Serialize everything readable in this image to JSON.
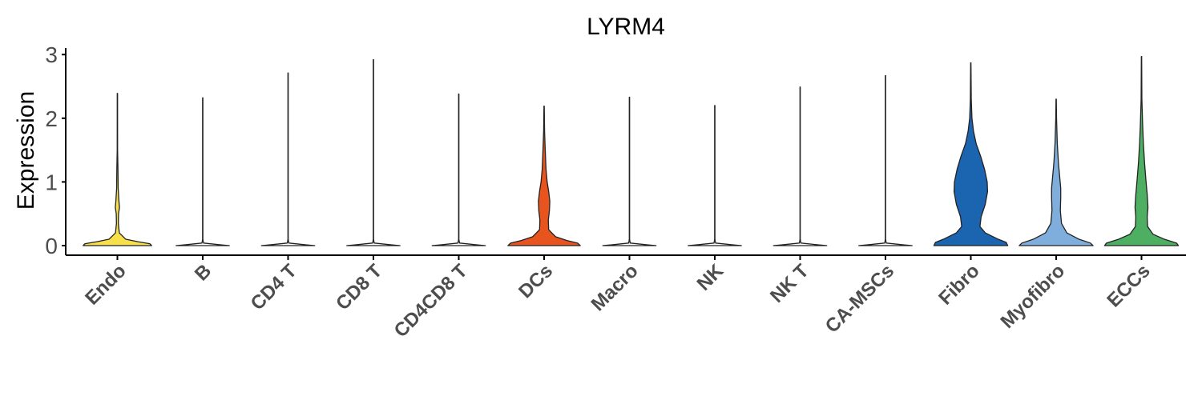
{
  "chart_data": {
    "type": "violin",
    "title": "LYRM4",
    "xlabel": "",
    "ylabel": "Expression",
    "ylim": [
      0,
      3.1
    ],
    "yticks": [
      "0",
      "1",
      "2",
      "3"
    ],
    "grid": false,
    "legend": "none",
    "categories": [
      "Endo",
      "B",
      "CD4 T",
      "CD8 T",
      "CD4CD8 T",
      "DCs",
      "Macro",
      "NK",
      "NK T",
      "CA-MSCs",
      "Fibro",
      "Myofibro",
      "ECCs"
    ],
    "series": [
      {
        "category": "Endo",
        "color": "#F6E04B",
        "max": 2.39,
        "profile": [
          [
            0,
            0.9
          ],
          [
            0.03,
            0.85
          ],
          [
            0.06,
            0.55
          ],
          [
            0.1,
            0.22
          ],
          [
            0.2,
            0.05
          ],
          [
            0.35,
            0.025
          ],
          [
            0.5,
            0.03
          ],
          [
            0.6,
            0.055
          ],
          [
            0.7,
            0.04
          ],
          [
            0.9,
            0.02
          ],
          [
            1.2,
            0.015
          ],
          [
            1.5,
            0.005
          ],
          [
            2.39,
            0.004
          ]
        ]
      },
      {
        "category": "B",
        "color": "#ffffff",
        "max": 2.32,
        "profile": [
          [
            0,
            0.7
          ],
          [
            0.01,
            0.5
          ],
          [
            0.04,
            0.02
          ],
          [
            0.1,
            0.004
          ],
          [
            2.32,
            0.004
          ]
        ]
      },
      {
        "category": "CD4 T",
        "color": "#ffffff",
        "max": 2.71,
        "profile": [
          [
            0,
            0.7
          ],
          [
            0.01,
            0.5
          ],
          [
            0.04,
            0.02
          ],
          [
            0.1,
            0.004
          ],
          [
            2.71,
            0.004
          ]
        ]
      },
      {
        "category": "CD8 T",
        "color": "#ffffff",
        "max": 2.92,
        "profile": [
          [
            0,
            0.7
          ],
          [
            0.01,
            0.5
          ],
          [
            0.04,
            0.02
          ],
          [
            0.1,
            0.004
          ],
          [
            2.92,
            0.004
          ]
        ]
      },
      {
        "category": "CD4CD8 T",
        "color": "#ffffff",
        "max": 2.38,
        "profile": [
          [
            0,
            0.7
          ],
          [
            0.01,
            0.5
          ],
          [
            0.04,
            0.02
          ],
          [
            0.1,
            0.004
          ],
          [
            2.38,
            0.004
          ]
        ]
      },
      {
        "category": "DCs",
        "color": "#E8541E",
        "max": 2.19,
        "profile": [
          [
            0,
            0.95
          ],
          [
            0.04,
            0.88
          ],
          [
            0.08,
            0.6
          ],
          [
            0.14,
            0.3
          ],
          [
            0.25,
            0.12
          ],
          [
            0.4,
            0.11
          ],
          [
            0.55,
            0.14
          ],
          [
            0.7,
            0.15
          ],
          [
            0.85,
            0.12
          ],
          [
            1.0,
            0.08
          ],
          [
            1.2,
            0.05
          ],
          [
            1.5,
            0.03
          ],
          [
            1.8,
            0.012
          ],
          [
            2.19,
            0.004
          ]
        ]
      },
      {
        "category": "Macro",
        "color": "#ffffff",
        "max": 2.33,
        "profile": [
          [
            0,
            0.7
          ],
          [
            0.01,
            0.5
          ],
          [
            0.04,
            0.02
          ],
          [
            0.1,
            0.004
          ],
          [
            2.33,
            0.004
          ]
        ]
      },
      {
        "category": "NK",
        "color": "#ffffff",
        "max": 2.2,
        "profile": [
          [
            0,
            0.7
          ],
          [
            0.01,
            0.5
          ],
          [
            0.04,
            0.02
          ],
          [
            0.1,
            0.004
          ],
          [
            2.2,
            0.004
          ]
        ]
      },
      {
        "category": "NK T",
        "color": "#ffffff",
        "max": 2.49,
        "profile": [
          [
            0,
            0.7
          ],
          [
            0.01,
            0.5
          ],
          [
            0.04,
            0.02
          ],
          [
            0.1,
            0.004
          ],
          [
            2.49,
            0.004
          ]
        ]
      },
      {
        "category": "CA-MSCs",
        "color": "#ffffff",
        "max": 2.67,
        "profile": [
          [
            0,
            0.7
          ],
          [
            0.01,
            0.5
          ],
          [
            0.04,
            0.02
          ],
          [
            0.1,
            0.004
          ],
          [
            2.67,
            0.004
          ]
        ]
      },
      {
        "category": "Fibro",
        "color": "#1B64B0",
        "max": 2.87,
        "profile": [
          [
            0,
            0.97
          ],
          [
            0.05,
            0.93
          ],
          [
            0.1,
            0.72
          ],
          [
            0.2,
            0.38
          ],
          [
            0.3,
            0.24
          ],
          [
            0.45,
            0.27
          ],
          [
            0.65,
            0.38
          ],
          [
            0.85,
            0.44
          ],
          [
            1.0,
            0.43
          ],
          [
            1.2,
            0.36
          ],
          [
            1.4,
            0.26
          ],
          [
            1.6,
            0.14
          ],
          [
            1.8,
            0.07
          ],
          [
            2.0,
            0.03
          ],
          [
            2.3,
            0.012
          ],
          [
            2.87,
            0.004
          ]
        ]
      },
      {
        "category": "Myofibro",
        "color": "#7FAEDC",
        "max": 2.3,
        "profile": [
          [
            0,
            0.97
          ],
          [
            0.04,
            0.9
          ],
          [
            0.1,
            0.6
          ],
          [
            0.2,
            0.28
          ],
          [
            0.35,
            0.14
          ],
          [
            0.55,
            0.11
          ],
          [
            0.75,
            0.12
          ],
          [
            0.9,
            0.12
          ],
          [
            1.1,
            0.09
          ],
          [
            1.3,
            0.06
          ],
          [
            1.6,
            0.03
          ],
          [
            2.0,
            0.01
          ],
          [
            2.3,
            0.004
          ]
        ]
      },
      {
        "category": "ECCs",
        "color": "#4EAE62",
        "max": 2.97,
        "profile": [
          [
            0,
            0.97
          ],
          [
            0.04,
            0.92
          ],
          [
            0.1,
            0.6
          ],
          [
            0.18,
            0.3
          ],
          [
            0.3,
            0.16
          ],
          [
            0.45,
            0.15
          ],
          [
            0.6,
            0.17
          ],
          [
            0.8,
            0.15
          ],
          [
            1.0,
            0.12
          ],
          [
            1.3,
            0.08
          ],
          [
            1.6,
            0.05
          ],
          [
            1.9,
            0.03
          ],
          [
            2.3,
            0.01
          ],
          [
            2.97,
            0.004
          ]
        ]
      }
    ]
  }
}
